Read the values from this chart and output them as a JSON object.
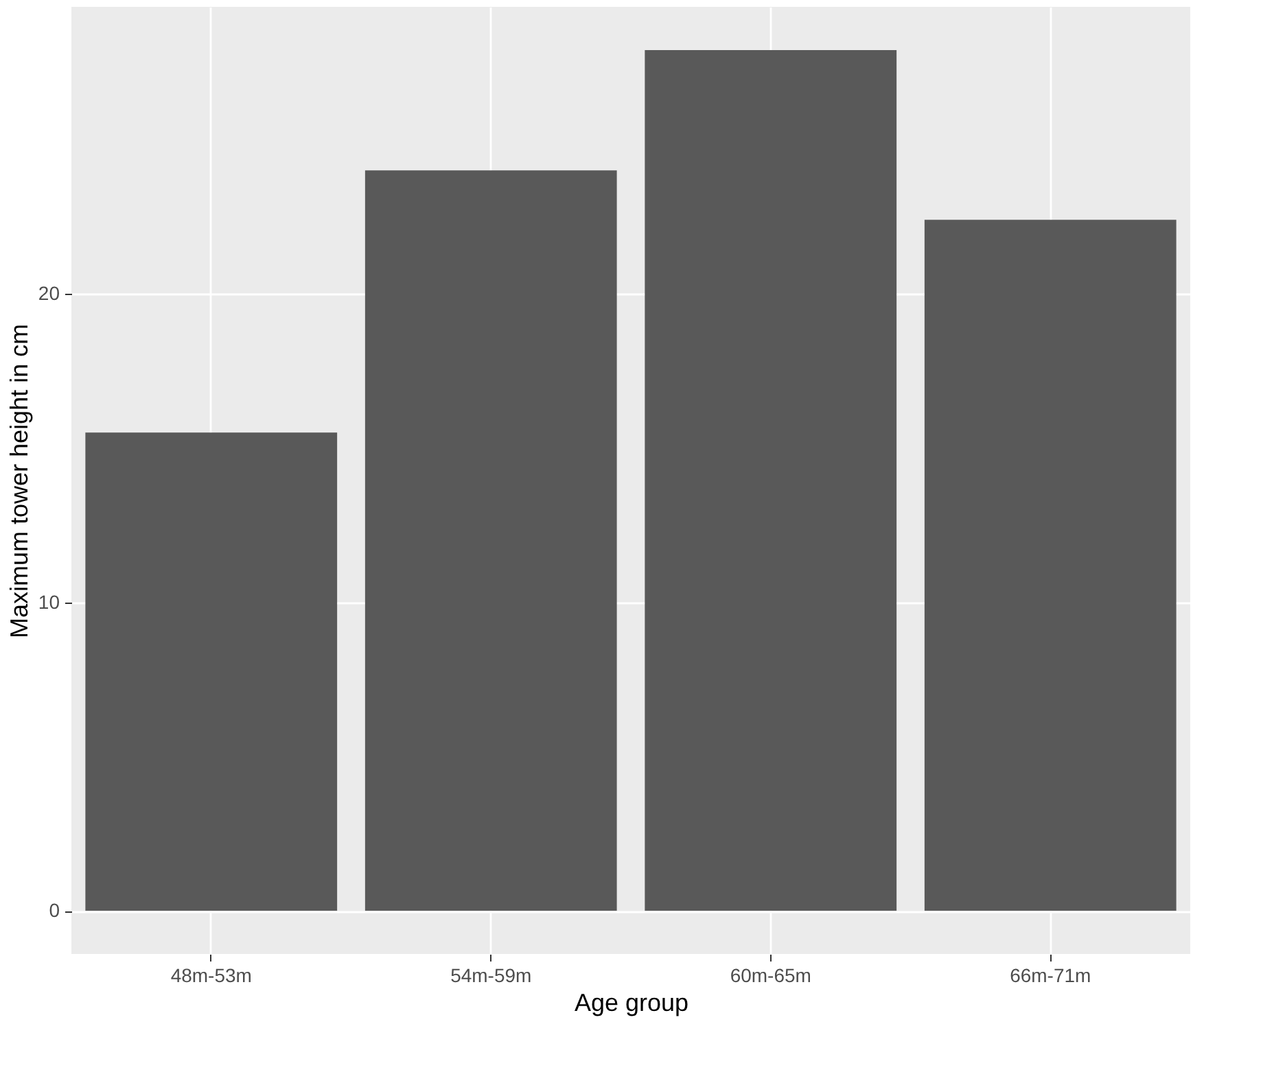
{
  "chart_data": {
    "type": "bar",
    "xlabel": "Age group",
    "ylabel": "Maximum tower height in cm",
    "categories": [
      "48m-53m",
      "54m-59m",
      "60m-65m",
      "66m-71m"
    ],
    "values": [
      15.5,
      24.0,
      27.9,
      22.4
    ],
    "color": "#595959",
    "ylim": [
      -1.4,
      29.3
    ],
    "yticks": [
      0,
      10,
      20
    ],
    "grid": true
  }
}
